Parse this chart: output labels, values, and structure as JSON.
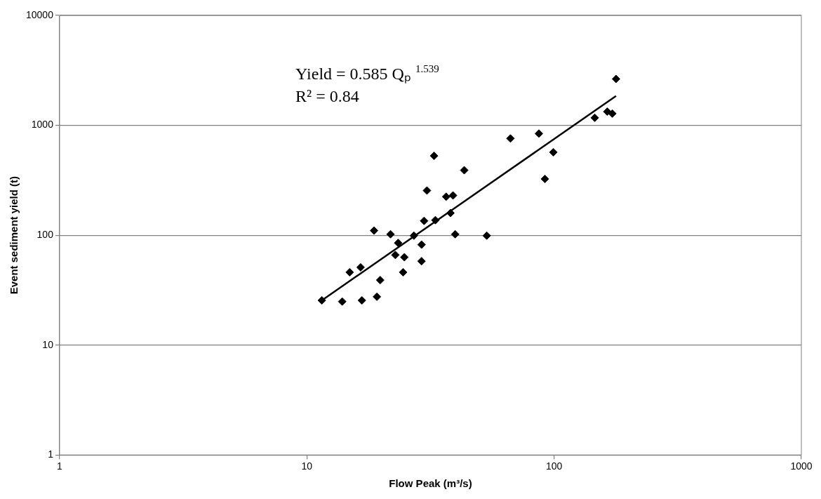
{
  "chart_data": {
    "type": "scatter",
    "xlabel": "Flow Peak (m³/s)",
    "ylabel": "Event sediment yield (t)",
    "annotations": [
      "Yield = 0.585 Qₚ $^{1.539}$",
      "R² = 0.84"
    ],
    "log": "xy",
    "grid": "y",
    "legend": false,
    "marker": "diamond",
    "xlim": [
      1,
      1000
    ],
    "xticks": [
      1,
      10,
      100,
      1000
    ],
    "ylim": [
      1,
      10000
    ],
    "yticks": [
      1,
      10,
      100,
      1000,
      10000
    ],
    "series": [
      {
        "color": "#000000",
        "x": [
          11.5,
          13.9,
          16.7,
          19.2,
          14.9,
          16.5,
          19.8,
          18.7,
          21.8,
          23.4,
          22.8,
          24.8,
          24.5,
          27.1,
          29.1,
          29.1,
          29.8,
          33.1,
          38.1,
          39.8,
          53.4,
          32.7,
          43.3,
          30.6,
          36.6,
          39.0,
          66.6,
          86.8,
          99.3,
          91.8,
          146,
          164,
          172,
          178
        ],
        "values": [
          25.5,
          24.9,
          25.5,
          27.5,
          46,
          51,
          39,
          110,
          102,
          85,
          66,
          63,
          46,
          99,
          82,
          58,
          135,
          137,
          159,
          102,
          99,
          527,
          390,
          255,
          224,
          230,
          759,
          841,
          569,
          325,
          1171,
          1332,
          1278,
          2642
        ]
      },
      {
        "type": "line",
        "marker": "none",
        "color": "#000000",
        "x": [
          11.5,
          178
        ],
        "values": [
          25.5,
          1850
        ]
      }
    ]
  }
}
